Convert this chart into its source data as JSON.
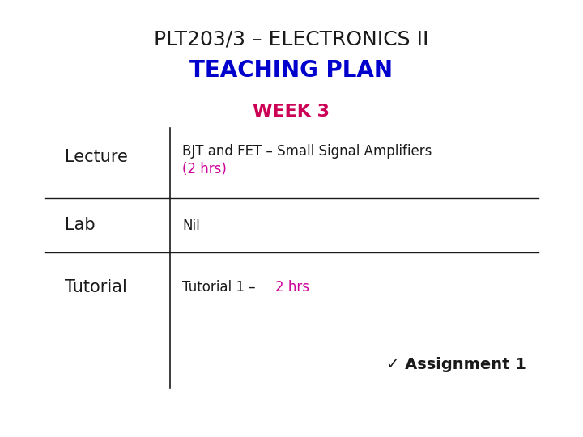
{
  "title": "PLT203/3 – ELECTRONICS II",
  "title_color": "#1a1a1a",
  "title_fontsize": 18,
  "teaching_plan_text": "TEACHING PLAN",
  "teaching_plan_color": "#0000cc",
  "teaching_plan_bg": "#b8d8f0",
  "teaching_plan_fontsize": 20,
  "week_text": "WEEK 3",
  "week_color": "#cc0055",
  "week_bg": "#ff88cc",
  "week_fontsize": 16,
  "lecture_label": "Lecture",
  "lecture_line1": "BJT and FET – Small Signal Amplifiers",
  "lecture_line2": "(2 hrs)",
  "lecture_line2_color": "#cc0099",
  "lab_label": "Lab",
  "lab_content": "Nil",
  "tutorial_label": "Tutorial",
  "tutorial_part1": "Tutorial 1 – ",
  "tutorial_part2": "2 hrs",
  "tutorial_part2_color": "#cc0099",
  "assignment_text": "✓ Assignment 1",
  "assignment_color": "#1a1a1a",
  "bg_color": "#ffffff",
  "footer_color": "#8faabc",
  "label_fontsize": 15,
  "content_fontsize": 12,
  "assignment_fontsize": 14,
  "row_text_color": "#1a1a1a"
}
